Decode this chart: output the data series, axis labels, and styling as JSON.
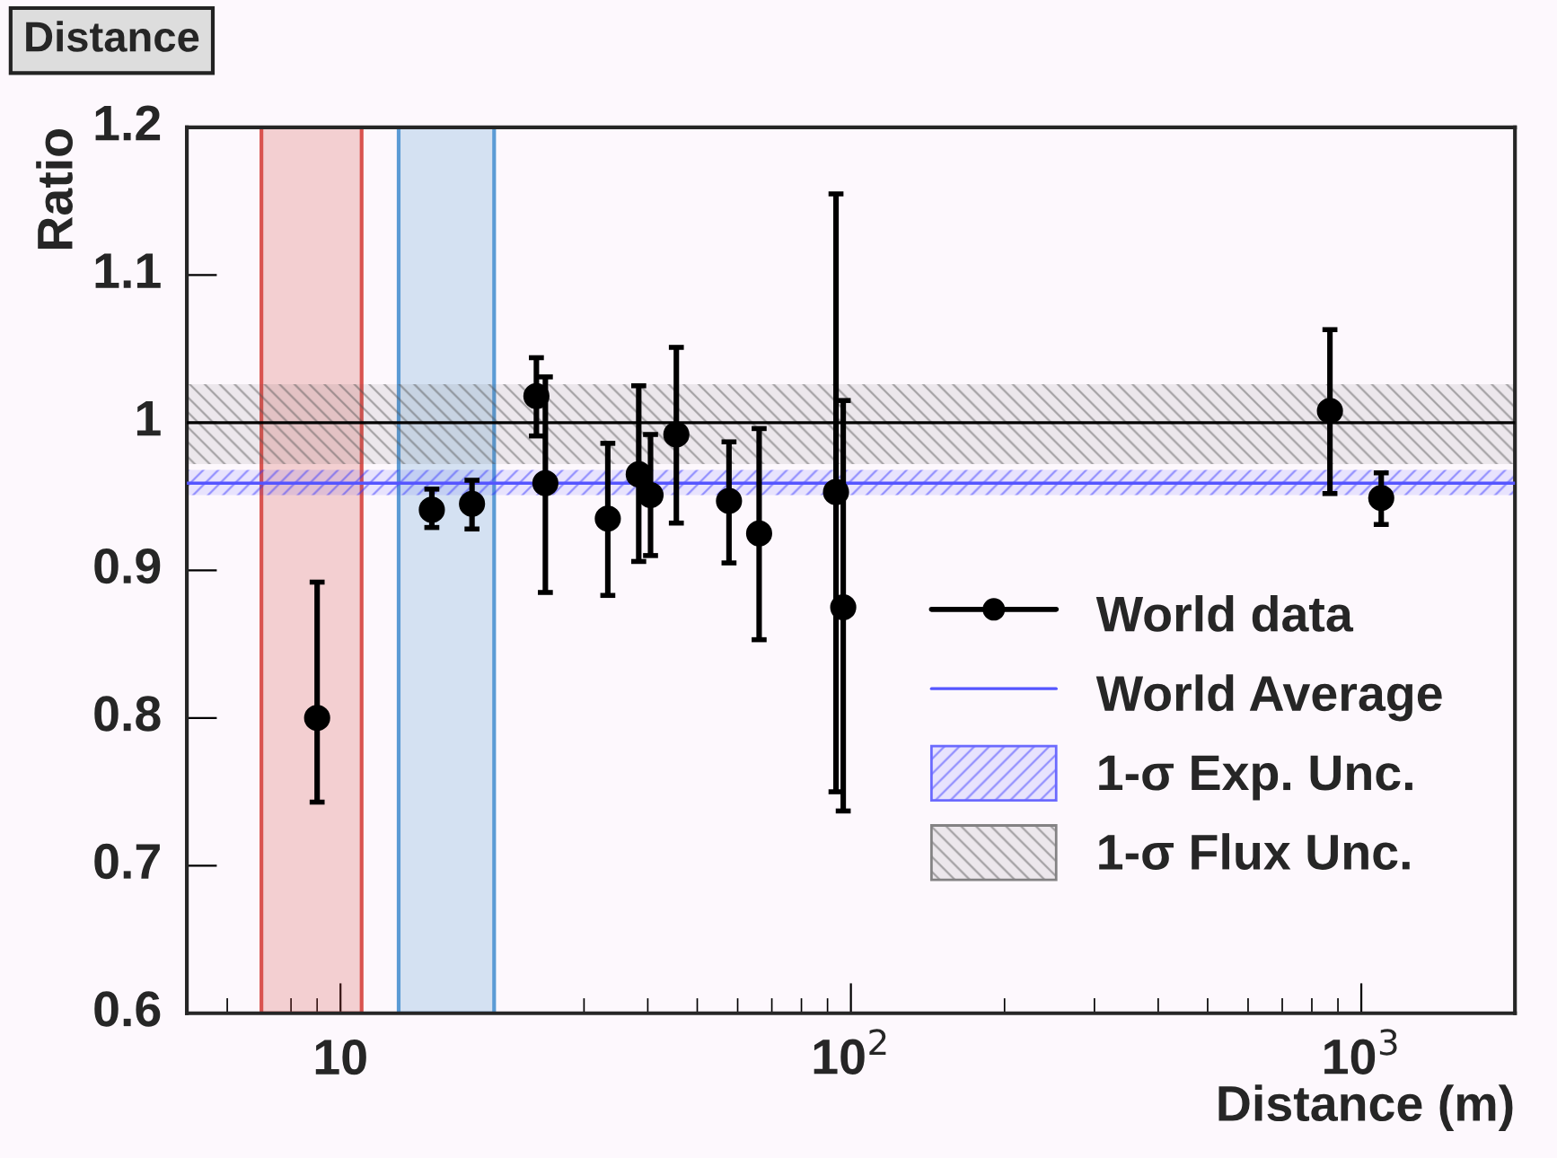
{
  "chart_data": {
    "type": "scatter",
    "title": "Distance",
    "xlabel": "Distance (m)",
    "ylabel": "Ratio",
    "log": "x",
    "xlim": [
      5,
      2000
    ],
    "xticks": [
      10,
      {
        "value": 100,
        "label": "10$^{2}$"
      },
      {
        "value": 1000,
        "label": "10$^{3}$"
      }
    ],
    "ylim": [
      0.6,
      1.2
    ],
    "yticks": [
      0.6,
      0.7,
      0.8,
      0.9,
      1,
      1.1,
      1.2
    ],
    "x": [
      9.0,
      15.1,
      18.1,
      24.2,
      25.2,
      33.4,
      38.4,
      40.5,
      45.5,
      57.7,
      66.1,
      93.5,
      96.6,
      868,
      1094
    ],
    "series": [
      {
        "name": "World data",
        "color": "#000000",
        "marker": "circle",
        "values": [
          0.8,
          0.941,
          0.945,
          1.018,
          0.959,
          0.935,
          0.965,
          0.951,
          0.992,
          0.947,
          0.925,
          0.953,
          0.875,
          1.008,
          0.949
        ],
        "errors": [
          [
            0.743,
            0.892
          ],
          [
            0.929,
            0.955
          ],
          [
            0.928,
            0.961
          ],
          [
            0.991,
            1.044
          ],
          [
            0.885,
            1.031
          ],
          [
            0.883,
            0.986
          ],
          [
            0.906,
            1.025
          ],
          [
            0.91,
            0.992
          ],
          [
            0.932,
            1.051
          ],
          [
            0.905,
            0.987
          ],
          [
            0.853,
            0.996
          ],
          [
            0.75,
            1.155
          ],
          [
            0.737,
            1.015
          ],
          [
            0.952,
            1.063
          ],
          [
            0.931,
            0.966
          ]
        ]
      }
    ],
    "ref_lines": [
      {
        "axis": "y",
        "value": 1.0,
        "color": "#000000"
      },
      {
        "axis": "y",
        "value": 0.959,
        "label": "World Average",
        "color": "#5555ff"
      }
    ],
    "bands": [
      {
        "axis": "x",
        "from": 7,
        "to": 11,
        "color": "#d9534f"
      },
      {
        "axis": "x",
        "from": 13,
        "to": 20,
        "color": "#5b9bd5"
      },
      {
        "axis": "y",
        "from": 0.951,
        "to": 0.968,
        "label": "1-σ Exp. Unc.",
        "color": "#3333ff"
      },
      {
        "axis": "y",
        "from": 0.972,
        "to": 1.026,
        "label": "1-σ Flux Unc.",
        "color": "#555555"
      }
    ],
    "grid": false,
    "legend": "bottom right"
  }
}
